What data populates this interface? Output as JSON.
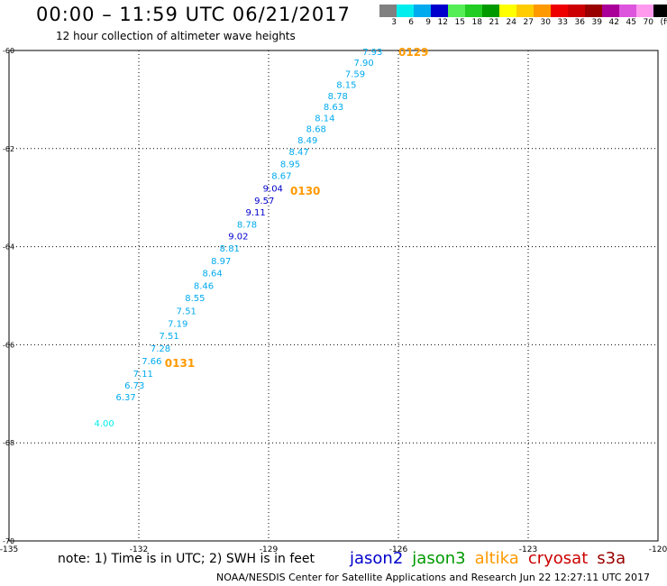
{
  "header": {
    "title": "00:00 – 11:59 UTC 06/21/2017",
    "subtitle": "12 hour collection of altimeter wave heights"
  },
  "scale": {
    "unit": "(ft)",
    "items": [
      {
        "color": "#808080",
        "label": "3"
      },
      {
        "color": "#00eeee",
        "label": "6"
      },
      {
        "color": "#00aaee",
        "label": "9"
      },
      {
        "color": "#0000cc",
        "label": "12"
      },
      {
        "color": "#55ee55",
        "label": "15"
      },
      {
        "color": "#22cc22",
        "label": "18"
      },
      {
        "color": "#009900",
        "label": "21"
      },
      {
        "color": "#ffff00",
        "label": "24"
      },
      {
        "color": "#ffcc00",
        "label": "27"
      },
      {
        "color": "#ff9900",
        "label": "30"
      },
      {
        "color": "#ee0000",
        "label": "33"
      },
      {
        "color": "#cc0000",
        "label": "36"
      },
      {
        "color": "#990000",
        "label": "39"
      },
      {
        "color": "#aa0099",
        "label": "42"
      },
      {
        "color": "#dd55dd",
        "label": "45"
      },
      {
        "color": "#ff99ee",
        "label": "70"
      },
      {
        "color": "#000000",
        "label": ""
      }
    ]
  },
  "legend": [
    {
      "name": "jason2",
      "color": "#0000cc"
    },
    {
      "name": "jason3",
      "color": "#009900"
    },
    {
      "name": "altika",
      "color": "#ff9900"
    },
    {
      "name": "cryosat",
      "color": "#cc0000"
    },
    {
      "name": "s3a",
      "color": "#990000"
    }
  ],
  "footer": {
    "note": "note: 1) Time is in UTC; 2) SWH is in feet",
    "credit": "NOAA/NESDIS Center for Satellite Applications and Research   Jun 22 12:27:11 UTC 2017"
  },
  "chart_data": {
    "type": "scatter",
    "title": "00:00 – 11:59 UTC 06/21/2017",
    "subtitle": "12 hour collection of altimeter wave heights",
    "xlabel": "",
    "ylabel": "",
    "xlim": [
      -135,
      -120
    ],
    "ylim": [
      -70,
      -60
    ],
    "x_ticks": [
      -135,
      -132,
      -129,
      -126,
      -123,
      -120
    ],
    "x_tick_labels": [
      "-135",
      "-132",
      "-129",
      "-126",
      "-123",
      "-120"
    ],
    "y_ticks": [
      -60,
      -62,
      -64,
      -66,
      -68,
      -70
    ],
    "y_tick_labels": [
      "-60",
      "-62",
      "-64",
      "-66",
      "-68",
      "-70"
    ],
    "grid": true,
    "colors": {
      "light_blue": "#00aaee",
      "dark_blue": "#0000cc",
      "cyan": "#00eeee",
      "time_label": "#ff9900"
    },
    "points": [
      {
        "lon": -126.6,
        "lat": -60.02,
        "value": "7.93",
        "color": "#00aaee"
      },
      {
        "lon": -126.8,
        "lat": -60.24,
        "value": "7.90",
        "color": "#00aaee"
      },
      {
        "lon": -127.0,
        "lat": -60.47,
        "value": "7.59",
        "color": "#00aaee"
      },
      {
        "lon": -127.2,
        "lat": -60.69,
        "value": "8.15",
        "color": "#00aaee"
      },
      {
        "lon": -127.4,
        "lat": -60.92,
        "value": "8.78",
        "color": "#00aaee"
      },
      {
        "lon": -127.5,
        "lat": -61.14,
        "value": "8.63",
        "color": "#00aaee"
      },
      {
        "lon": -127.7,
        "lat": -61.37,
        "value": "8.14",
        "color": "#00aaee"
      },
      {
        "lon": -127.9,
        "lat": -61.59,
        "value": "8.68",
        "color": "#00aaee"
      },
      {
        "lon": -128.1,
        "lat": -61.82,
        "value": "8.49",
        "color": "#00aaee"
      },
      {
        "lon": -128.3,
        "lat": -62.06,
        "value": "8.47",
        "color": "#00aaee"
      },
      {
        "lon": -128.5,
        "lat": -62.31,
        "value": "8.95",
        "color": "#00aaee"
      },
      {
        "lon": -128.7,
        "lat": -62.55,
        "value": "8.67",
        "color": "#00aaee"
      },
      {
        "lon": -128.9,
        "lat": -62.8,
        "value": "9.04",
        "color": "#0000cc"
      },
      {
        "lon": -129.1,
        "lat": -63.05,
        "value": "9.57",
        "color": "#0000cc"
      },
      {
        "lon": -129.3,
        "lat": -63.29,
        "value": "9.11",
        "color": "#0000cc"
      },
      {
        "lon": -129.5,
        "lat": -63.54,
        "value": "8.78",
        "color": "#00aaee"
      },
      {
        "lon": -129.7,
        "lat": -63.78,
        "value": "9.02",
        "color": "#0000cc"
      },
      {
        "lon": -129.9,
        "lat": -64.03,
        "value": "8.81",
        "color": "#00aaee"
      },
      {
        "lon": -130.1,
        "lat": -64.28,
        "value": "8.97",
        "color": "#00aaee"
      },
      {
        "lon": -130.3,
        "lat": -64.53,
        "value": "8.64",
        "color": "#00aaee"
      },
      {
        "lon": -130.5,
        "lat": -64.79,
        "value": "8.46",
        "color": "#00aaee"
      },
      {
        "lon": -130.7,
        "lat": -65.04,
        "value": "8.55",
        "color": "#00aaee"
      },
      {
        "lon": -130.9,
        "lat": -65.3,
        "value": "7.51",
        "color": "#00aaee"
      },
      {
        "lon": -131.1,
        "lat": -65.56,
        "value": "7.19",
        "color": "#00aaee"
      },
      {
        "lon": -131.3,
        "lat": -65.81,
        "value": "7.51",
        "color": "#00aaee"
      },
      {
        "lon": -131.5,
        "lat": -66.07,
        "value": "7.28",
        "color": "#00aaee"
      },
      {
        "lon": -131.7,
        "lat": -66.32,
        "value": "7.66",
        "color": "#00aaee"
      },
      {
        "lon": -131.9,
        "lat": -66.58,
        "value": "7.11",
        "color": "#00aaee"
      },
      {
        "lon": -132.1,
        "lat": -66.82,
        "value": "6.73",
        "color": "#00aaee"
      },
      {
        "lon": -132.3,
        "lat": -67.06,
        "value": "6.37",
        "color": "#00aaee"
      },
      {
        "lon": -132.8,
        "lat": -67.59,
        "value": "4.00",
        "color": "#00eeee"
      }
    ],
    "time_labels": [
      {
        "lon": -126.0,
        "lat": -60.02,
        "text": "0129"
      },
      {
        "lon": -128.5,
        "lat": -62.85,
        "text": "0130"
      },
      {
        "lon": -131.4,
        "lat": -66.36,
        "text": "0131"
      }
    ]
  }
}
